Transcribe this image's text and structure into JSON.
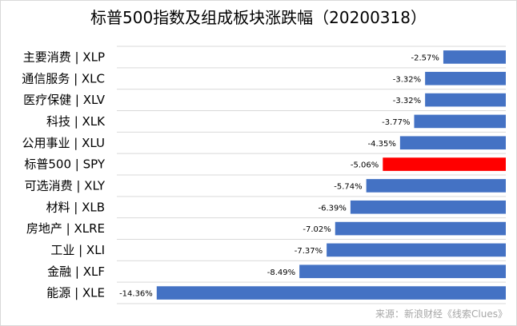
{
  "chart_data": {
    "type": "bar",
    "orientation": "horizontal",
    "title": "标普500指数及组成板块涨跌幅（20200318）",
    "categories": [
      "主要消费 | XLP",
      "通信服务 | XLC",
      "医疗保健 | XLV",
      "科技 | XLK",
      "公用事业 | XLU",
      "标普500 | SPY",
      "可选消费 | XLY",
      "材料 | XLB",
      "房地产 | XLRE",
      "工业 | XLI",
      "金融 | XLF",
      "能源 | XLE"
    ],
    "values": [
      -2.57,
      -3.32,
      -3.32,
      -3.77,
      -4.35,
      -5.06,
      -5.74,
      -6.39,
      -7.02,
      -7.37,
      -8.49,
      -14.36
    ],
    "data_labels": [
      "-2.57%",
      "-3.32%",
      "-3.32%",
      "-3.77%",
      "-4.35%",
      "-5.06%",
      "-5.74%",
      "-6.39%",
      "-7.02%",
      "-7.37%",
      "-8.49%",
      "-14.36%"
    ],
    "xlim": [
      -16,
      0
    ],
    "xlabel": "",
    "ylabel": "",
    "grid": true,
    "legend": "none",
    "colors": {
      "default": "#4472C4",
      "highlight": "#FF0000",
      "highlight_index": 5,
      "grid": "#d9d9d9"
    }
  },
  "source": "来源：新浪财经《线索Clues》"
}
